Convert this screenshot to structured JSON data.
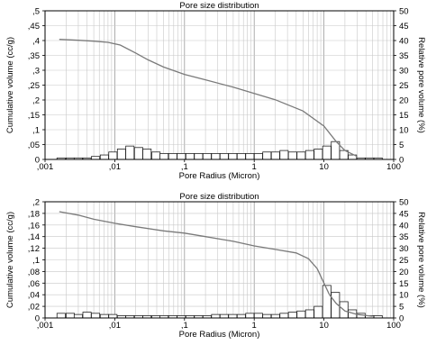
{
  "chart_data": [
    {
      "type": "bar",
      "title": "Pore size distribution",
      "xlabel": "Pore Radius (Micron)",
      "ylabel": "Cumulative volume (cc/g)",
      "y2label": "Relative pore volume (%)",
      "xscale": "log",
      "xlim": [
        0.001,
        100
      ],
      "xticks": [
        ",001",
        ",01",
        ",1",
        "1",
        "10",
        "100"
      ],
      "ylim": [
        0,
        0.5
      ],
      "yticks": [
        "0",
        ",05",
        ",1",
        ",15",
        ",2",
        ",25",
        ",3",
        ",35",
        ",4",
        ",45",
        ",5"
      ],
      "y2lim": [
        0,
        50
      ],
      "y2ticks": [
        "0",
        "5",
        "10",
        "15",
        "20",
        "25",
        "30",
        "35",
        "40",
        "45",
        "50"
      ],
      "grid": true,
      "legend": "none",
      "series": [
        {
          "kind": "line",
          "axis": "left",
          "x": [
            0.0016,
            0.003,
            0.005,
            0.008,
            0.012,
            0.02,
            0.03,
            0.05,
            0.1,
            0.2,
            0.5,
            1,
            2,
            5,
            10,
            15,
            20,
            30
          ],
          "y": [
            0.404,
            0.401,
            0.398,
            0.394,
            0.385,
            0.358,
            0.335,
            0.311,
            0.286,
            0.268,
            0.243,
            0.222,
            0.201,
            0.163,
            0.112,
            0.06,
            0.03,
            0.01
          ]
        },
        {
          "kind": "bar",
          "axis": "right",
          "x": [
            0.0017,
            0.0023,
            0.003,
            0.004,
            0.0053,
            0.0071,
            0.0094,
            0.0125,
            0.0165,
            0.022,
            0.029,
            0.039,
            0.051,
            0.068,
            0.09,
            0.12,
            0.159,
            0.211,
            0.28,
            0.371,
            0.492,
            0.653,
            0.866,
            1.15,
            1.52,
            2.02,
            2.68,
            3.55,
            4.71,
            6.25,
            8.29,
            11,
            14.6,
            19.3,
            25.6,
            34,
            45.1,
            59.8
          ],
          "y": [
            0.5,
            0.5,
            0.5,
            0.5,
            1.0,
            1.5,
            2.5,
            3.5,
            4.5,
            4.0,
            3.5,
            2.5,
            2.0,
            2.0,
            2.0,
            2.0,
            2.0,
            2.0,
            2.0,
            2.0,
            2.0,
            2.0,
            2.0,
            2.0,
            2.5,
            2.5,
            3.0,
            2.5,
            2.5,
            3.0,
            3.5,
            4.5,
            6.0,
            3.0,
            1.5,
            0.5,
            0.5,
            0.5
          ]
        }
      ]
    },
    {
      "type": "bar",
      "title": "Pore size distribution",
      "xlabel": "Pore Radius (Micron)",
      "ylabel": "Cumulative volume (cc/g)",
      "y2label": "Relative pore volume (%)",
      "xscale": "log",
      "xlim": [
        0.001,
        100
      ],
      "xticks": [
        ",001",
        ",01",
        ",1",
        "1",
        "10",
        "100"
      ],
      "ylim": [
        0,
        0.2
      ],
      "yticks": [
        "0",
        ",02",
        ",04",
        ",06",
        ",08",
        ",1",
        ",12",
        ",14",
        ",16",
        ",18",
        ",2"
      ],
      "y2lim": [
        0,
        50
      ],
      "y2ticks": [
        "0",
        "5",
        "10",
        "15",
        "20",
        "25",
        "30",
        "35",
        "40",
        "45",
        "50"
      ],
      "grid": true,
      "legend": "none",
      "series": [
        {
          "kind": "line",
          "axis": "left",
          "x": [
            0.0016,
            0.003,
            0.005,
            0.01,
            0.02,
            0.05,
            0.1,
            0.2,
            0.5,
            1,
            2,
            4,
            6,
            8,
            10,
            12,
            15,
            20,
            30,
            50
          ],
          "y": [
            0.183,
            0.177,
            0.17,
            0.163,
            0.157,
            0.15,
            0.146,
            0.14,
            0.132,
            0.124,
            0.118,
            0.112,
            0.102,
            0.085,
            0.06,
            0.04,
            0.025,
            0.012,
            0.006,
            0.003
          ]
        },
        {
          "kind": "bar",
          "axis": "right",
          "x": [
            0.0017,
            0.0023,
            0.003,
            0.004,
            0.0053,
            0.0071,
            0.0094,
            0.0125,
            0.0165,
            0.022,
            0.029,
            0.039,
            0.051,
            0.068,
            0.09,
            0.12,
            0.159,
            0.211,
            0.28,
            0.371,
            0.492,
            0.653,
            0.866,
            1.15,
            1.52,
            2.02,
            2.68,
            3.55,
            4.71,
            6.25,
            8.29,
            11,
            14.6,
            19.3,
            25.6,
            34,
            45.1,
            59.8
          ],
          "y": [
            2.0,
            2.0,
            1.5,
            2.5,
            2.0,
            1.5,
            1.5,
            1.0,
            1.0,
            1.0,
            1.0,
            1.0,
            1.0,
            1.0,
            1.0,
            1.0,
            1.0,
            1.0,
            1.5,
            1.5,
            1.5,
            1.5,
            2.0,
            2.0,
            1.5,
            1.5,
            2.0,
            2.5,
            3.0,
            3.5,
            5.0,
            14.0,
            11.0,
            7.0,
            3.5,
            2.0,
            1.0,
            1.0
          ]
        }
      ]
    }
  ]
}
